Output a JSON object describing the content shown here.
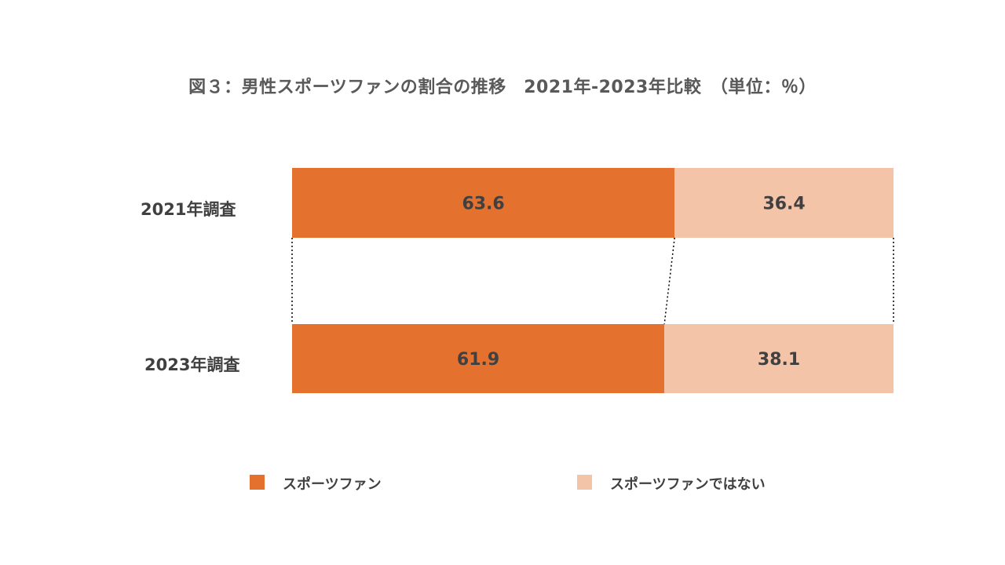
{
  "chart_data": {
    "type": "bar",
    "orientation": "horizontal",
    "stacked": "100%",
    "title": "図３：男性スポーツファンの割合の推移　2021年-2023年比較　（単位：％）",
    "categories": [
      "2021年調査",
      "2023年調査"
    ],
    "series": [
      {
        "name": "スポーツファン",
        "values": [
          63.6,
          61.9
        ],
        "color": "#E4712E"
      },
      {
        "name": "スポーツファンではない",
        "values": [
          36.4,
          38.1
        ],
        "color": "#F4C4A8"
      }
    ],
    "xlim": [
      0,
      100
    ],
    "grid": false,
    "legend": "bottom",
    "connector_lines": "dotted"
  }
}
